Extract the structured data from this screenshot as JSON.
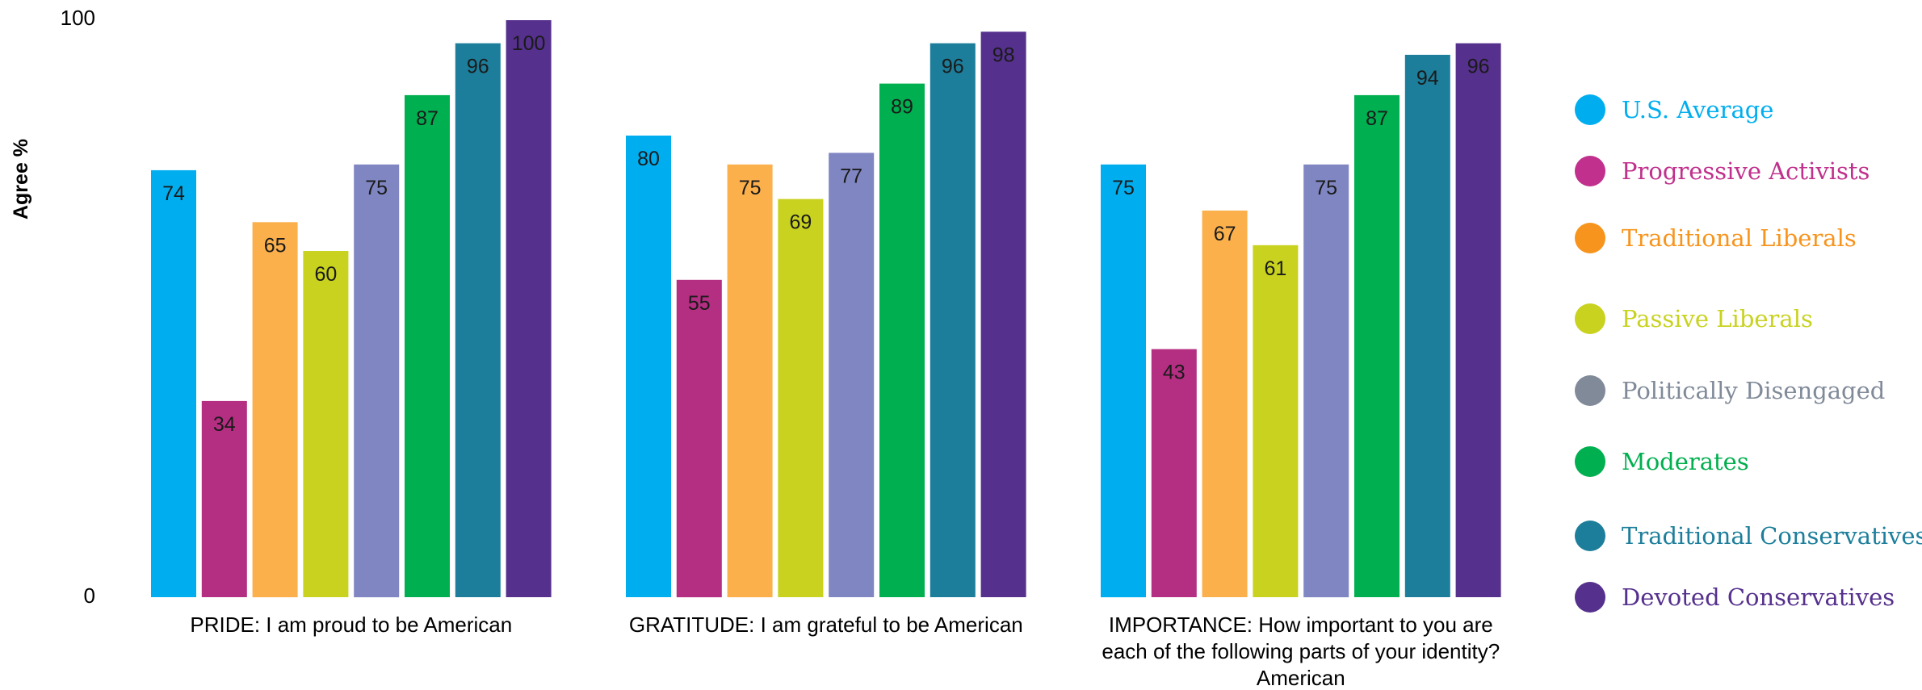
{
  "chart_data": {
    "type": "bar",
    "ylabel": "Agree %",
    "ylim": [
      0,
      100
    ],
    "ytick_labels": [
      "0",
      "100"
    ],
    "categories": [
      "PRIDE: I am proud to be American",
      "GRATITUDE: I am grateful to be American",
      "IMPORTANCE: How important to you are each of the following parts of your identity? American"
    ],
    "category_lines": [
      [
        "PRIDE: I am proud to be American"
      ],
      [
        "GRATITUDE: I am grateful to be American"
      ],
      [
        "IMPORTANCE: How important to you are",
        "each of the following parts of your identity?",
        "American"
      ]
    ],
    "series": [
      {
        "name": "U.S. Average",
        "color": "#00AEEF",
        "legend_color": "#00AEEF",
        "values": [
          74,
          80,
          75
        ]
      },
      {
        "name": "Progressive Activists",
        "color": "#B42E82",
        "legend_color": "#C0308C",
        "values": [
          34,
          55,
          43
        ]
      },
      {
        "name": "Traditional Liberals",
        "color": "#FBB04C",
        "legend_color": "#F7941D",
        "values": [
          65,
          75,
          67
        ]
      },
      {
        "name": "Passive Liberals",
        "color": "#C8D21F",
        "legend_color": "#C8D21F",
        "values": [
          60,
          69,
          61
        ]
      },
      {
        "name": "Politically Disengaged",
        "color": "#7F86C2",
        "legend_color": "#808A99",
        "values": [
          75,
          77,
          75
        ]
      },
      {
        "name": "Moderates",
        "color": "#00AF4F",
        "legend_color": "#00AF4F",
        "values": [
          87,
          89,
          87
        ]
      },
      {
        "name": "Traditional Conservatives",
        "color": "#1C7E9B",
        "legend_color": "#1C7E9B",
        "values": [
          96,
          96,
          94
        ]
      },
      {
        "name": "Devoted Conservatives",
        "color": "#55308D",
        "legend_color": "#55308D",
        "values": [
          100,
          98,
          96
        ]
      }
    ],
    "legend_position": "right",
    "grid": false
  }
}
